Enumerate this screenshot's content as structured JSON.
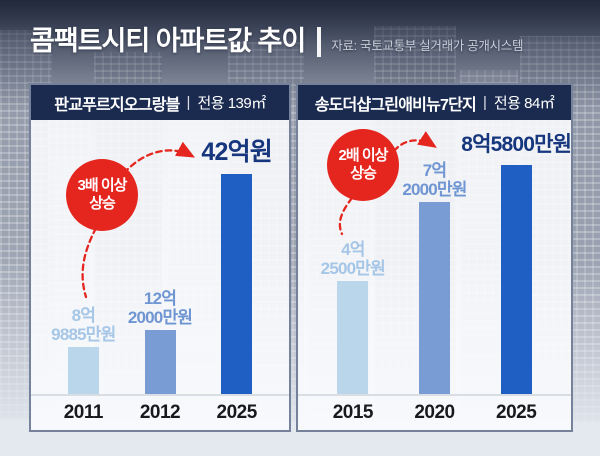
{
  "header": {
    "title": "콤팩트시티 아파트값 추이",
    "source": "자료: 국토교통부 실거래가 공개시스템"
  },
  "colors": {
    "accent_red": "#e5261f",
    "panel_header_bg": "#1b2b50",
    "highlight_text": "#16367d"
  },
  "chart_data": [
    {
      "type": "bar",
      "panel_title": "판교푸르지오그랑블",
      "area_label": "전용 139㎡",
      "categories": [
        "2011",
        "2012",
        "2025"
      ],
      "values": [
        8.9885,
        12.2,
        42
      ],
      "unit": "억원",
      "ylim": [
        0,
        42
      ],
      "legend": "none",
      "grid": false,
      "bar_labels": [
        {
          "line1": "8억",
          "line2": "9885만원"
        },
        {
          "line1": "12억",
          "line2": "2000만원"
        },
        {
          "line1": "",
          "line2": ""
        }
      ],
      "highlight_label": "42억원",
      "badge": {
        "line1": "3배 이상",
        "line2": "상승"
      },
      "bar_colors": [
        "#b9d6eb",
        "#7a9cd4",
        "#1f5fc4"
      ],
      "label_colors": [
        "#a5c6e6",
        "#6f96d2",
        "#16367d"
      ]
    },
    {
      "type": "bar",
      "panel_title": "송도더샵그린애비뉴7단지",
      "area_label": "전용 84㎡",
      "categories": [
        "2015",
        "2020",
        "2025"
      ],
      "values": [
        4.25,
        7.2,
        8.58
      ],
      "unit": "억원",
      "ylim": [
        0,
        8.8
      ],
      "legend": "none",
      "grid": false,
      "bar_labels": [
        {
          "line1": "4억",
          "line2": "2500만원"
        },
        {
          "line1": "7억",
          "line2": "2000만원"
        },
        {
          "line1": "",
          "line2": ""
        }
      ],
      "highlight_label": "8억5800만원",
      "badge": {
        "line1": "2배 이상",
        "line2": "상승"
      },
      "bar_colors": [
        "#b9d6eb",
        "#7a9cd4",
        "#1f5fc4"
      ],
      "label_colors": [
        "#a5c6e6",
        "#6f96d2",
        "#16367d"
      ]
    }
  ]
}
